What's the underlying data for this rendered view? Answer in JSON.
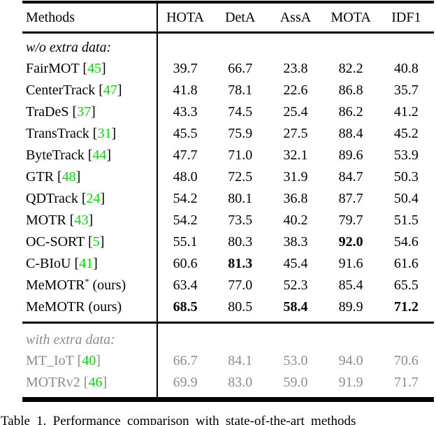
{
  "colors": {
    "citation_green": "#00dd00",
    "muted_gray": "#8c8c8c",
    "text_black": "#000000"
  },
  "header": {
    "methods_label": "Methods",
    "columns": [
      "HOTA",
      "DetA",
      "AssA",
      "MOTA",
      "IDF1"
    ]
  },
  "sections": [
    {
      "label": "w/o extra data:",
      "muted": false,
      "rows": [
        {
          "name": "FairMOT",
          "cite": "45",
          "note": "",
          "sup": "",
          "values": [
            "39.7",
            "66.7",
            "23.8",
            "82.2",
            "40.8"
          ],
          "bold": []
        },
        {
          "name": "CenterTrack",
          "cite": "47",
          "note": "",
          "sup": "",
          "values": [
            "41.8",
            "78.1",
            "22.6",
            "86.8",
            "35.7"
          ],
          "bold": []
        },
        {
          "name": "TraDeS",
          "cite": "37",
          "note": "",
          "sup": "",
          "values": [
            "43.3",
            "74.5",
            "25.4",
            "86.2",
            "41.2"
          ],
          "bold": []
        },
        {
          "name": "TransTrack",
          "cite": "31",
          "note": "",
          "sup": "",
          "values": [
            "45.5",
            "75.9",
            "27.5",
            "88.4",
            "45.2"
          ],
          "bold": []
        },
        {
          "name": "ByteTrack",
          "cite": "44",
          "note": "",
          "sup": "",
          "values": [
            "47.7",
            "71.0",
            "32.1",
            "89.6",
            "53.9"
          ],
          "bold": []
        },
        {
          "name": "GTR",
          "cite": "48",
          "note": "",
          "sup": "",
          "values": [
            "48.0",
            "72.5",
            "31.9",
            "84.7",
            "50.3"
          ],
          "bold": []
        },
        {
          "name": "QDTrack",
          "cite": "24",
          "note": "",
          "sup": "",
          "values": [
            "54.2",
            "80.1",
            "36.8",
            "87.7",
            "50.4"
          ],
          "bold": []
        },
        {
          "name": "MOTR",
          "cite": "43",
          "note": "",
          "sup": "",
          "values": [
            "54.2",
            "73.5",
            "40.2",
            "79.7",
            "51.5"
          ],
          "bold": []
        },
        {
          "name": "OC-SORT",
          "cite": "5",
          "note": "",
          "sup": "",
          "values": [
            "55.1",
            "80.3",
            "38.3",
            "92.0",
            "54.6"
          ],
          "bold": [
            3
          ]
        },
        {
          "name": "C-BIoU",
          "cite": "41",
          "note": "",
          "sup": "",
          "values": [
            "60.6",
            "81.3",
            "45.4",
            "91.6",
            "61.6"
          ],
          "bold": [
            1
          ]
        },
        {
          "name": "MeMOTR",
          "cite": "",
          "note": "(ours)",
          "sup": "*",
          "values": [
            "63.4",
            "77.0",
            "52.3",
            "85.4",
            "65.5"
          ],
          "bold": []
        },
        {
          "name": "MeMOTR",
          "cite": "",
          "note": "(ours)",
          "sup": "",
          "values": [
            "68.5",
            "80.5",
            "58.4",
            "89.9",
            "71.2"
          ],
          "bold": [
            0,
            2,
            4
          ]
        }
      ]
    },
    {
      "label": "with extra data:",
      "muted": true,
      "rows": [
        {
          "name": "MT_IoT",
          "cite": "40",
          "note": "",
          "sup": "",
          "values": [
            "66.7",
            "84.1",
            "53.0",
            "94.0",
            "70.6"
          ],
          "bold": []
        },
        {
          "name": "MOTRv2",
          "cite": "46",
          "note": "",
          "sup": "",
          "values": [
            "69.9",
            "83.0",
            "59.0",
            "91.9",
            "71.7"
          ],
          "bold": []
        }
      ]
    }
  ],
  "caption": "Table 1. Performance comparison with state-of-the-art methods"
}
